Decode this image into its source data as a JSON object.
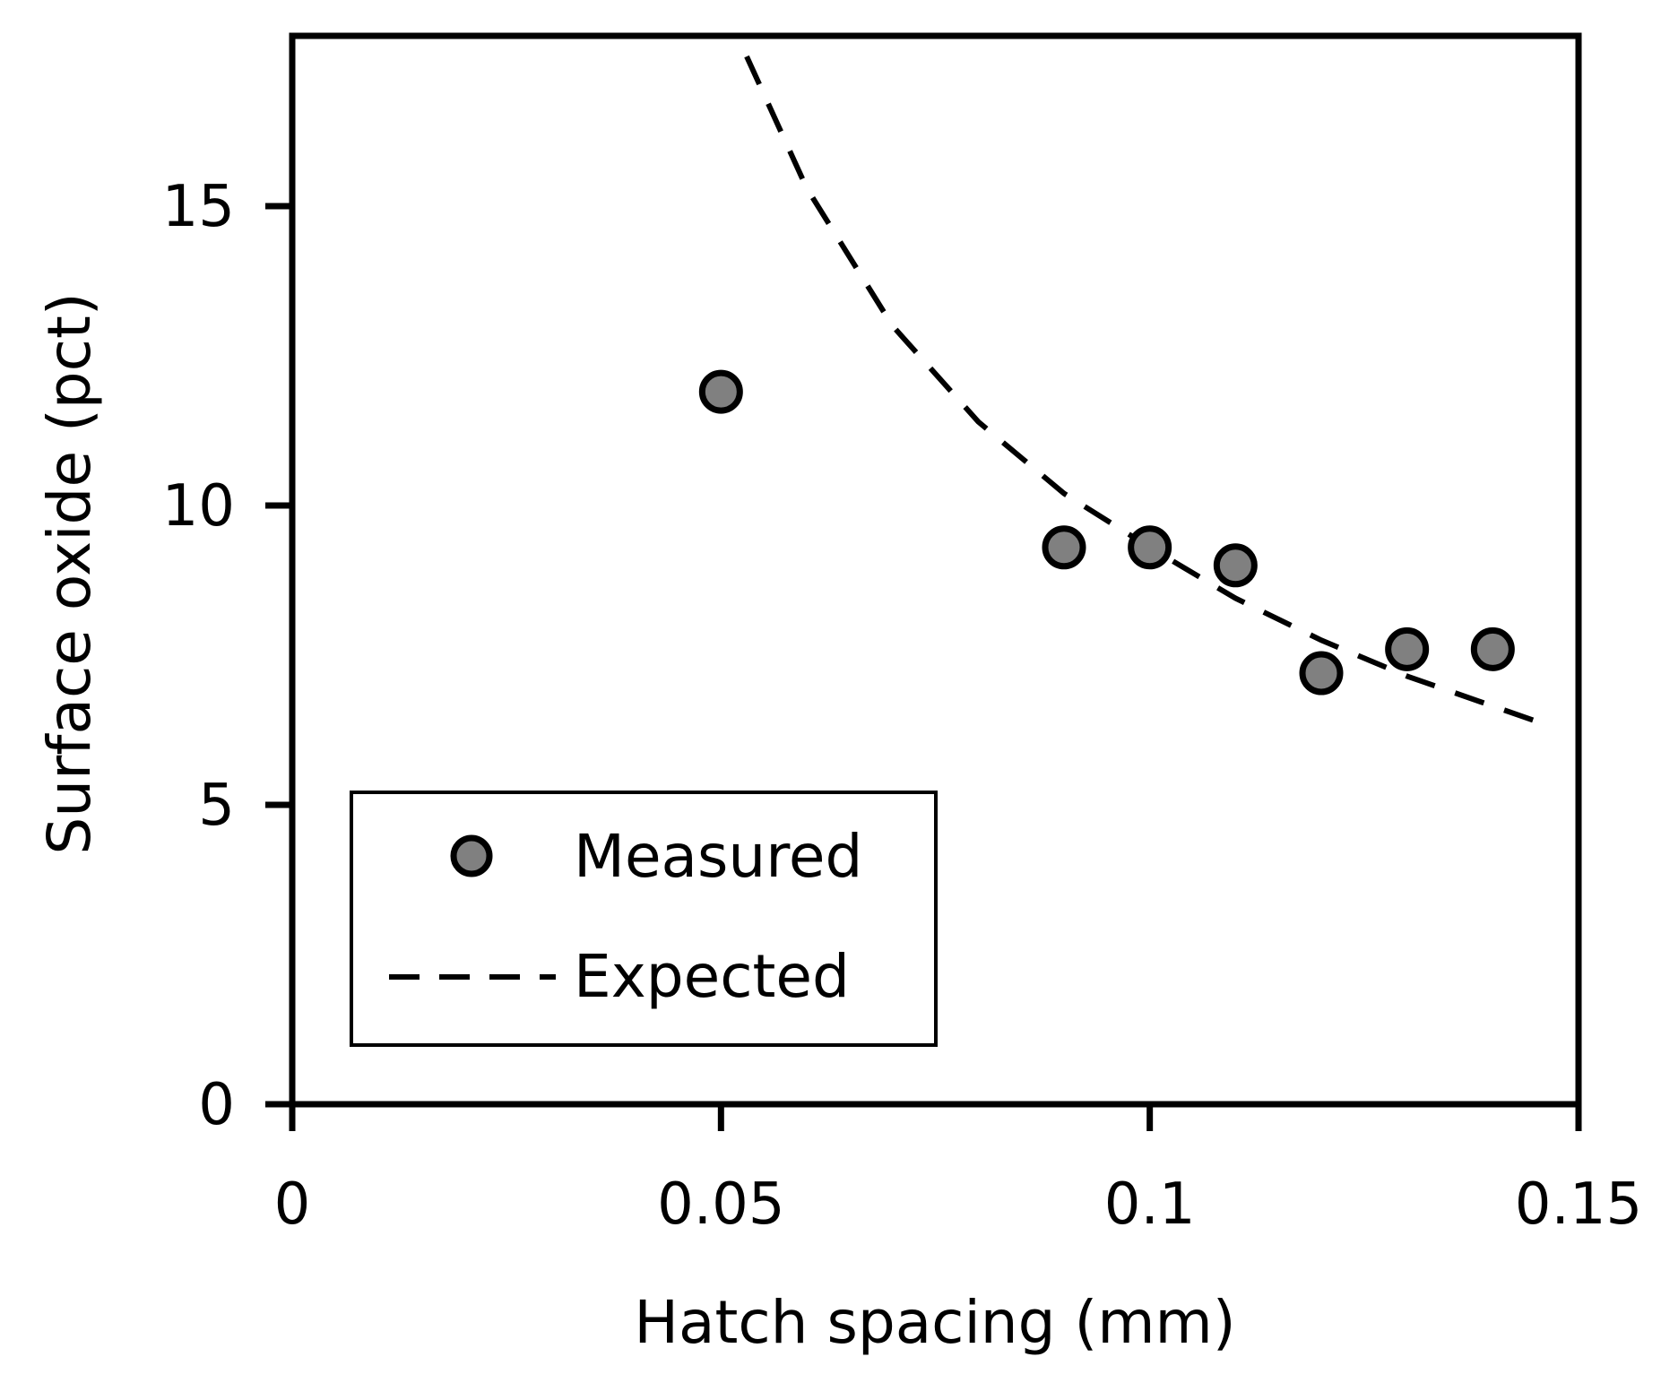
{
  "chart_data": {
    "type": "scatter",
    "title": "",
    "xlabel": "Hatch spacing (mm)",
    "ylabel": "Surface oxide (pct)",
    "xlim": [
      0,
      0.15
    ],
    "ylim": [
      0,
      18
    ],
    "xticks": [
      {
        "value": 0,
        "label": "0"
      },
      {
        "value": 0.05,
        "label": "0.05"
      },
      {
        "value": 0.1,
        "label": "0.1"
      },
      {
        "value": 0.15,
        "label": "0.15"
      }
    ],
    "yticks": [
      {
        "value": 0,
        "label": "0"
      },
      {
        "value": 5,
        "label": "5"
      },
      {
        "value": 10,
        "label": "10"
      },
      {
        "value": 15,
        "label": "15"
      }
    ],
    "grid": false,
    "legend_position": "bottom-left",
    "series": [
      {
        "name": "Measured",
        "style": "marker",
        "x": [
          0.05,
          0.09,
          0.1,
          0.11,
          0.12,
          0.13,
          0.14
        ],
        "y": [
          11.9,
          9.3,
          9.3,
          9.0,
          7.2,
          7.6,
          7.6
        ]
      },
      {
        "name": "Expected",
        "style": "dashed-line",
        "x": [
          0.053,
          0.06,
          0.07,
          0.08,
          0.09,
          0.1,
          0.11,
          0.12,
          0.13,
          0.14,
          0.145
        ],
        "y": [
          17.5,
          15.3,
          13.0,
          11.4,
          10.2,
          9.3,
          8.45,
          7.75,
          7.15,
          6.65,
          6.4
        ]
      }
    ],
    "colors": {
      "marker_fill": "#808080",
      "marker_stroke": "#000000",
      "line": "#000000",
      "axis": "#000000",
      "background": "#ffffff"
    }
  }
}
